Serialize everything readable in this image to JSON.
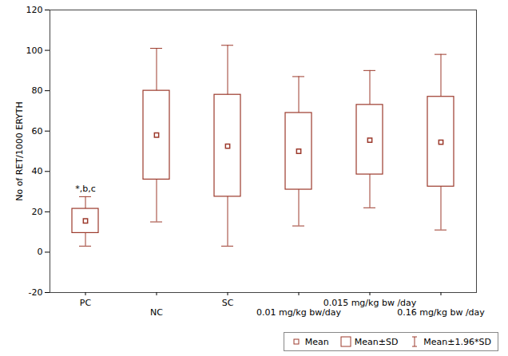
{
  "chart_data": {
    "type": "box",
    "y_label": "No of RET/1000 ERYTH",
    "categories": [
      "PC",
      "NC",
      "SC",
      "0.01 mg/kg bw/day",
      "0.015 mg/kg bw /day",
      "0.16 mg/kg bw /day"
    ],
    "values": [
      15.5,
      58,
      52.5,
      50,
      55.5,
      54.5
    ],
    "box_low": [
      9.5,
      36,
      27.5,
      31,
      38.5,
      32.5
    ],
    "box_high": [
      21.5,
      80,
      78,
      69,
      73,
      77
    ],
    "whisker_low": [
      3,
      15,
      3,
      13,
      22,
      11
    ],
    "whisker_high": [
      27.5,
      101,
      102.5,
      87,
      90,
      98
    ],
    "color": "#9c3a2c",
    "ylim": [
      -20,
      120
    ],
    "yticks": [
      -20,
      0,
      20,
      40,
      60,
      80,
      100,
      120
    ],
    "grid": false,
    "legend_entries": [
      "Mean",
      "Mean±SD",
      "Mean±1.96*SD"
    ],
    "annotations": [
      {
        "category": "PC",
        "text": "*,b,c"
      }
    ]
  }
}
